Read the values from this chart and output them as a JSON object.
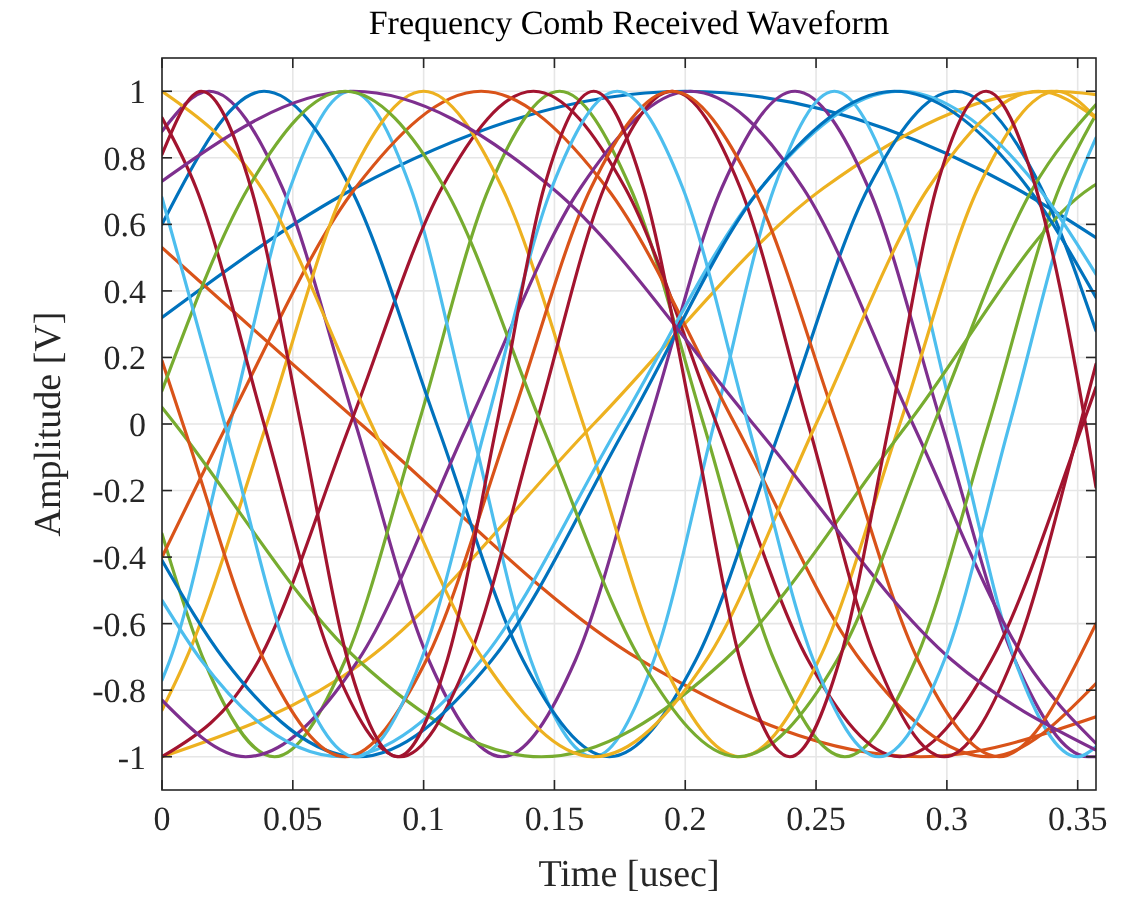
{
  "chart_data": {
    "type": "line",
    "title": "Frequency Comb Received Waveform",
    "xlabel": "Time [usec]",
    "ylabel": "Amplitude [V]",
    "xlim": [
      0,
      0.357
    ],
    "ylim": [
      -1.1,
      1.1
    ],
    "xticks": [
      0,
      0.05,
      0.1,
      0.15,
      0.2,
      0.25,
      0.3,
      0.35
    ],
    "yticks": [
      -1,
      -0.8,
      -0.6,
      -0.4,
      -0.2,
      0,
      0.2,
      0.4,
      0.6,
      0.8,
      1
    ],
    "grid": true,
    "series": [
      {
        "color": "#0072bd",
        "x": [
          0,
          0.074,
          0.2,
          0.326,
          0.357
        ],
        "values": [
          0.32,
          0.71,
          1,
          0.71,
          0.56
        ]
      },
      {
        "color": "#d95319",
        "x": [
          0,
          0.076,
          0.183,
          0.29,
          0.357
        ],
        "values": [
          0.53,
          0,
          -0.71,
          -1,
          -0.88
        ]
      },
      {
        "color": "#edb120",
        "x": [
          0,
          0.078,
          0.165,
          0.253,
          0.34,
          0.357
        ],
        "values": [
          -1,
          -0.71,
          0,
          0.71,
          1,
          0.99
        ]
      },
      {
        "color": "#7e2f8e",
        "x": [
          0,
          0.018,
          0.046,
          0.074,
          0.102,
          0.13,
          0.158,
          0.186,
          0.214,
          0.242,
          0.27,
          0.298,
          0.326,
          0.354,
          0.357
        ],
        "values": [
          0.88,
          1,
          0.71,
          0,
          -0.71,
          -1,
          -0.71,
          0,
          0.71,
          1,
          0.71,
          0,
          -0.71,
          -1,
          -1
        ]
      },
      {
        "color": "#77ac30",
        "x": [
          0,
          0.016,
          0.043,
          0.07,
          0.098,
          0.125,
          0.152,
          0.179,
          0.207,
          0.234,
          0.261,
          0.288,
          0.316,
          0.343,
          0.357
        ],
        "values": [
          -0.33,
          -0.71,
          -1,
          -0.71,
          0,
          0.71,
          1,
          0.71,
          0,
          -0.71,
          -1,
          -0.71,
          0,
          0.71,
          0.93
        ]
      },
      {
        "color": "#4dbeee",
        "x": [
          0,
          0.003,
          0.026,
          0.049,
          0.072,
          0.095,
          0.118,
          0.141,
          0.165,
          0.188,
          0.211,
          0.234,
          0.257,
          0.28,
          0.303,
          0.326,
          0.35,
          0.357
        ],
        "values": [
          -0.77,
          -0.71,
          0,
          0.71,
          1,
          0.71,
          0,
          -0.71,
          -1,
          -0.71,
          0,
          0.71,
          1,
          0.71,
          0,
          -0.71,
          -1,
          -0.97
        ]
      },
      {
        "color": "#a2142f",
        "x": [
          0,
          0.037,
          0.072,
          0.107,
          0.142,
          0.177,
          0.212,
          0.247,
          0.282,
          0.317,
          0.352,
          0.357
        ],
        "values": [
          -1,
          -0.71,
          0,
          0.71,
          1,
          0.71,
          0,
          -0.71,
          -1,
          -0.71,
          0,
          0.11
        ]
      },
      {
        "color": "#0072bd",
        "x": [
          0,
          0.039,
          0.072,
          0.105,
          0.138,
          0.171,
          0.204,
          0.237,
          0.27,
          0.303,
          0.336,
          0.357
        ],
        "values": [
          0.6,
          1,
          0.71,
          0,
          -0.71,
          -1,
          -0.71,
          0,
          0.71,
          1,
          0.71,
          0.28
        ]
      },
      {
        "color": "#d95319",
        "x": [
          0,
          0.025,
          0.074,
          0.122,
          0.17,
          0.219,
          0.267,
          0.316,
          0.357
        ],
        "values": [
          -0.4,
          0,
          0.71,
          1,
          0.71,
          0,
          -0.71,
          -1,
          -0.78
        ]
      },
      {
        "color": "#edb120",
        "x": [
          0,
          0.009,
          0.04,
          0.07,
          0.1,
          0.13,
          0.161,
          0.191,
          0.221,
          0.251,
          0.282,
          0.312,
          0.342,
          0.357
        ],
        "values": [
          -0.86,
          -0.71,
          0,
          0.71,
          1,
          0.71,
          0,
          -0.71,
          -1,
          -0.71,
          0,
          0.71,
          1,
          0.92
        ]
      },
      {
        "color": "#7e2f8e",
        "x": [
          0,
          0.032,
          0.075,
          0.117,
          0.16,
          0.202,
          0.245,
          0.287,
          0.33,
          0.357
        ],
        "values": [
          -0.83,
          -1,
          -0.71,
          0,
          0.71,
          1,
          0.71,
          0,
          -0.71,
          -0.96
        ]
      },
      {
        "color": "#77ac30",
        "x": [
          0,
          0.005,
          0.075,
          0.145,
          0.215,
          0.285,
          0.355,
          0.357
        ],
        "values": [
          0.05,
          0,
          -0.71,
          -1,
          -0.71,
          0,
          0.71,
          0.72
        ]
      },
      {
        "color": "#4dbeee",
        "x": [
          0,
          0.015,
          0.069,
          0.122,
          0.175,
          0.229,
          0.282,
          0.335,
          0.357
        ],
        "values": [
          -0.53,
          -0.71,
          -1,
          -0.71,
          0,
          0.71,
          1,
          0.71,
          0.45
        ]
      },
      {
        "color": "#a2142f",
        "x": [
          0,
          0.013,
          0.039,
          0.065,
          0.091,
          0.117,
          0.143,
          0.169,
          0.195,
          0.221,
          0.247,
          0.273,
          0.299,
          0.325,
          0.351,
          0.357
        ],
        "values": [
          0.92,
          0.71,
          0,
          -0.71,
          -1,
          -0.71,
          0,
          0.71,
          1,
          0.71,
          0,
          -0.71,
          -1,
          -0.71,
          0,
          0.18
        ]
      },
      {
        "color": "#0072bd",
        "x": [
          0,
          0.024,
          0.075,
          0.126,
          0.178,
          0.229,
          0.28,
          0.331,
          0.357
        ],
        "values": [
          -0.41,
          -0.71,
          -1,
          -0.71,
          0,
          0.71,
          1,
          0.71,
          0.38
        ]
      },
      {
        "color": "#d95319",
        "x": [
          0,
          0.008,
          0.039,
          0.07,
          0.101,
          0.133,
          0.164,
          0.195,
          0.226,
          0.258,
          0.289,
          0.32,
          0.357
        ],
        "values": [
          0.19,
          0,
          -0.71,
          -1,
          -0.71,
          0,
          0.71,
          1,
          0.71,
          0,
          -0.71,
          -1,
          -0.6
        ]
      },
      {
        "color": "#edb120",
        "x": [
          0,
          0.038,
          0.08,
          0.123,
          0.165,
          0.208,
          0.25,
          0.293,
          0.335,
          0.357
        ],
        "values": [
          1,
          0.71,
          0,
          -0.71,
          -1,
          -0.71,
          0,
          0.71,
          1,
          0.92
        ]
      },
      {
        "color": "#7e2f8e",
        "x": [
          0,
          0.073,
          0.149,
          0.226,
          0.302,
          0.357
        ],
        "values": [
          0.73,
          1,
          0.71,
          0,
          -0.71,
          -0.98
        ]
      },
      {
        "color": "#77ac30",
        "x": [
          0,
          0.033,
          0.07,
          0.108,
          0.145,
          0.183,
          0.22,
          0.258,
          0.295,
          0.333,
          0.357
        ],
        "values": [
          0.1,
          0.71,
          1,
          0.71,
          0,
          -0.71,
          -1,
          -0.71,
          0,
          0.71,
          0.96
        ]
      },
      {
        "color": "#4dbeee",
        "x": [
          0,
          0.024,
          0.049,
          0.074,
          0.099,
          0.124,
          0.149,
          0.174,
          0.199,
          0.224,
          0.249,
          0.274,
          0.299,
          0.324,
          0.349,
          0.357
        ],
        "values": [
          0.68,
          0,
          -0.71,
          -1,
          -0.71,
          0,
          0.71,
          1,
          0.71,
          0,
          -0.71,
          -1,
          -0.71,
          0,
          0.71,
          0.86
        ]
      },
      {
        "color": "#a2142f",
        "x": [
          0,
          0.015,
          0.034,
          0.053,
          0.071,
          0.09,
          0.109,
          0.128,
          0.146,
          0.165,
          0.184,
          0.203,
          0.221,
          0.24,
          0.259,
          0.278,
          0.296,
          0.315,
          0.334,
          0.353,
          0.357
        ],
        "values": [
          0.81,
          1,
          0.71,
          0,
          -0.71,
          -1,
          -0.71,
          0,
          0.71,
          1,
          0.71,
          0,
          -0.71,
          -1,
          -0.71,
          0,
          0.71,
          1,
          0.71,
          0,
          -0.19
        ]
      }
    ]
  }
}
